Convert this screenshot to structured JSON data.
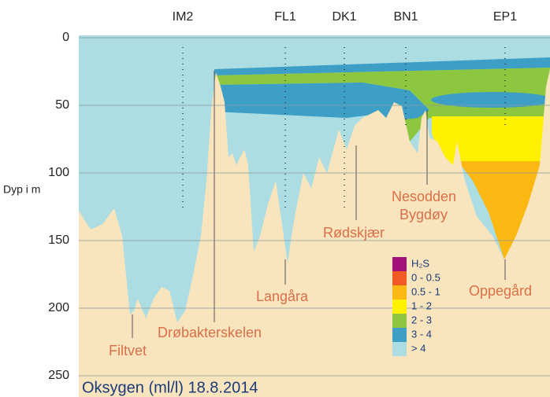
{
  "title": "Oksygen (ml/l) 18.8.2014",
  "axis": {
    "label": "Dyp i m",
    "range": [
      0,
      250
    ],
    "ticks": [
      0,
      50,
      100,
      150,
      200,
      250
    ]
  },
  "stations": [
    "IM2",
    "FL1",
    "DK1",
    "BN1",
    "EP1"
  ],
  "places": [
    "Filtvet",
    "Drøbakterskelen",
    "Langåra",
    "Rødskjær",
    "Nesodden",
    "Bygdøy",
    "Oppegård"
  ],
  "legend": [
    {
      "label": "H₂S",
      "color": "#a0127a"
    },
    {
      "label": "0 - 0.5",
      "color": "#f15a24"
    },
    {
      "label": "0.5 - 1",
      "color": "#fbb813"
    },
    {
      "label": "1 - 2",
      "color": "#fff200"
    },
    {
      "label": "2 - 3",
      "color": "#8dc63f"
    },
    {
      "label": "3 - 4",
      "color": "#3d9fc6"
    },
    {
      "label": "> 4",
      "color": "#abdde3"
    }
  ]
}
